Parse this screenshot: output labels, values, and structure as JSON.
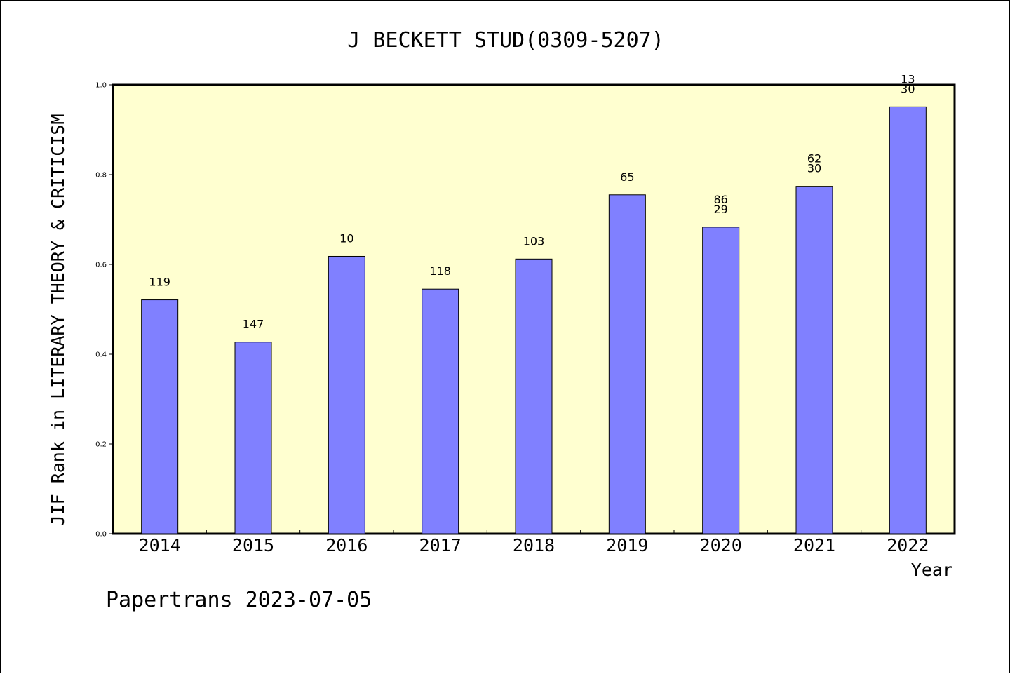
{
  "chart_data": {
    "type": "bar",
    "title": "J BECKETT STUD(0309-5207)",
    "xlabel": "Year",
    "ylabel": "JIF Rank in LITERARY THEORY & CRITICISM",
    "footer": "Papertrans 2023-07-05",
    "categories": [
      "2014",
      "2015",
      "2016",
      "2017",
      "2018",
      "2019",
      "2020",
      "2021",
      "2022"
    ],
    "values": [
      0.521,
      0.427,
      0.618,
      0.545,
      0.612,
      0.755,
      0.683,
      0.774,
      0.951
    ],
    "labels": [
      [
        "119"
      ],
      [
        "147"
      ],
      [
        "10"
      ],
      [
        "118"
      ],
      [
        "103"
      ],
      [
        "65"
      ],
      [
        "86",
        "29"
      ],
      [
        "62",
        "30"
      ],
      [
        "13",
        "30"
      ]
    ],
    "ylim": [
      0,
      1.0
    ],
    "yticks": [
      "0.0",
      "0.2",
      "0.4",
      "0.6",
      "0.8",
      "1.0"
    ],
    "colors": {
      "plot_background": "#ffffd0",
      "bar_fill": "#8080ff",
      "bar_stroke": "#000000"
    },
    "grid": false
  }
}
